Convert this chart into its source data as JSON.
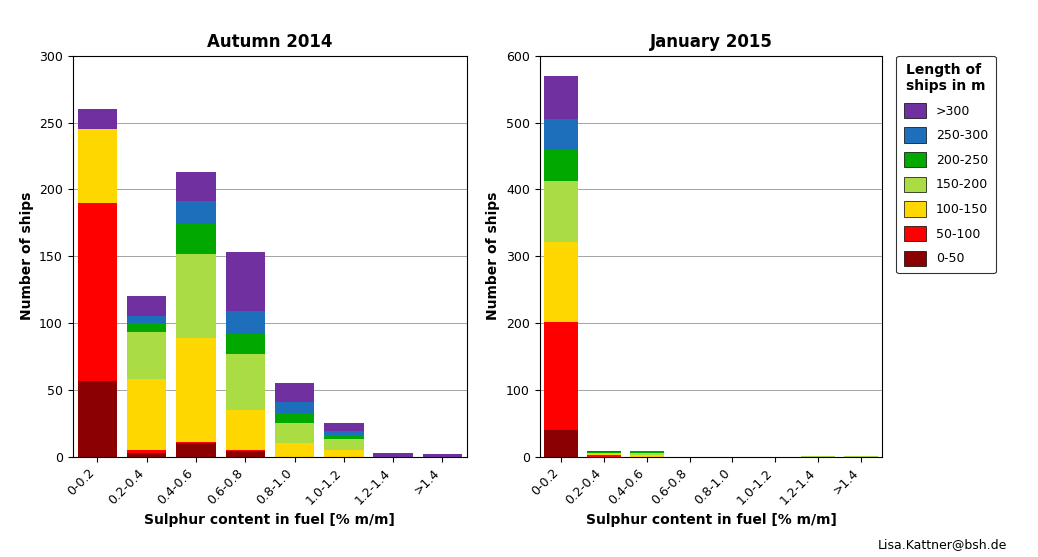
{
  "categories": [
    "0-0.2",
    "0.2-0.4",
    "0.4-0.6",
    "0.6-0.8",
    "0.8-1.0",
    "1.0-1.2",
    "1.2-1.4",
    ">1.4"
  ],
  "autumn2014": {
    "title": "Autumn 2014",
    "ylim": [
      0,
      300
    ],
    "yticks": [
      0,
      50,
      100,
      150,
      200,
      250,
      300
    ],
    "segments": {
      "0-50": [
        57,
        3,
        10,
        4,
        0,
        0,
        0,
        0
      ],
      "50-100": [
        133,
        2,
        1,
        1,
        0,
        0,
        0,
        0
      ],
      "100-150": [
        55,
        53,
        78,
        30,
        10,
        5,
        0,
        0
      ],
      "150-200": [
        0,
        35,
        63,
        42,
        15,
        8,
        0,
        0
      ],
      "200-250": [
        0,
        7,
        22,
        15,
        8,
        3,
        0,
        0
      ],
      "250-300": [
        0,
        5,
        17,
        17,
        8,
        3,
        0,
        0
      ],
      ">300": [
        15,
        15,
        22,
        44,
        14,
        6,
        3,
        2
      ]
    }
  },
  "jan2015": {
    "title": "January 2015",
    "ylim": [
      0,
      600
    ],
    "yticks": [
      0,
      100,
      200,
      300,
      400,
      500,
      600
    ],
    "segments": {
      "0-50": [
        40,
        0,
        0,
        0,
        0,
        0,
        0,
        0
      ],
      "50-100": [
        162,
        2,
        0,
        0,
        0,
        0,
        0,
        0
      ],
      "100-150": [
        120,
        2,
        3,
        0,
        0,
        0,
        0,
        0
      ],
      "150-200": [
        90,
        2,
        3,
        0,
        0,
        0,
        1,
        1
      ],
      "200-250": [
        48,
        1,
        1,
        0,
        0,
        0,
        0,
        0
      ],
      "250-300": [
        45,
        0,
        1,
        0,
        0,
        0,
        0,
        0
      ],
      ">300": [
        65,
        1,
        0,
        0,
        0,
        0,
        0,
        0
      ]
    }
  },
  "segment_colors": {
    "0-50": "#8B0000",
    "50-100": "#FF0000",
    "100-150": "#FFD700",
    "150-200": "#AADD44",
    "200-250": "#00A800",
    "250-300": "#1E6FBB",
    ">300": "#7030A0"
  },
  "segment_labels": [
    "0-50",
    "50-100",
    "100-150",
    "150-200",
    "200-250",
    "250-300",
    ">300"
  ],
  "xlabel": "Sulphur content in fuel [% m/m]",
  "ylabel": "Number of ships",
  "legend_title": "Length of\nships in m",
  "watermark": "Lisa.Kattner@bsh.de"
}
